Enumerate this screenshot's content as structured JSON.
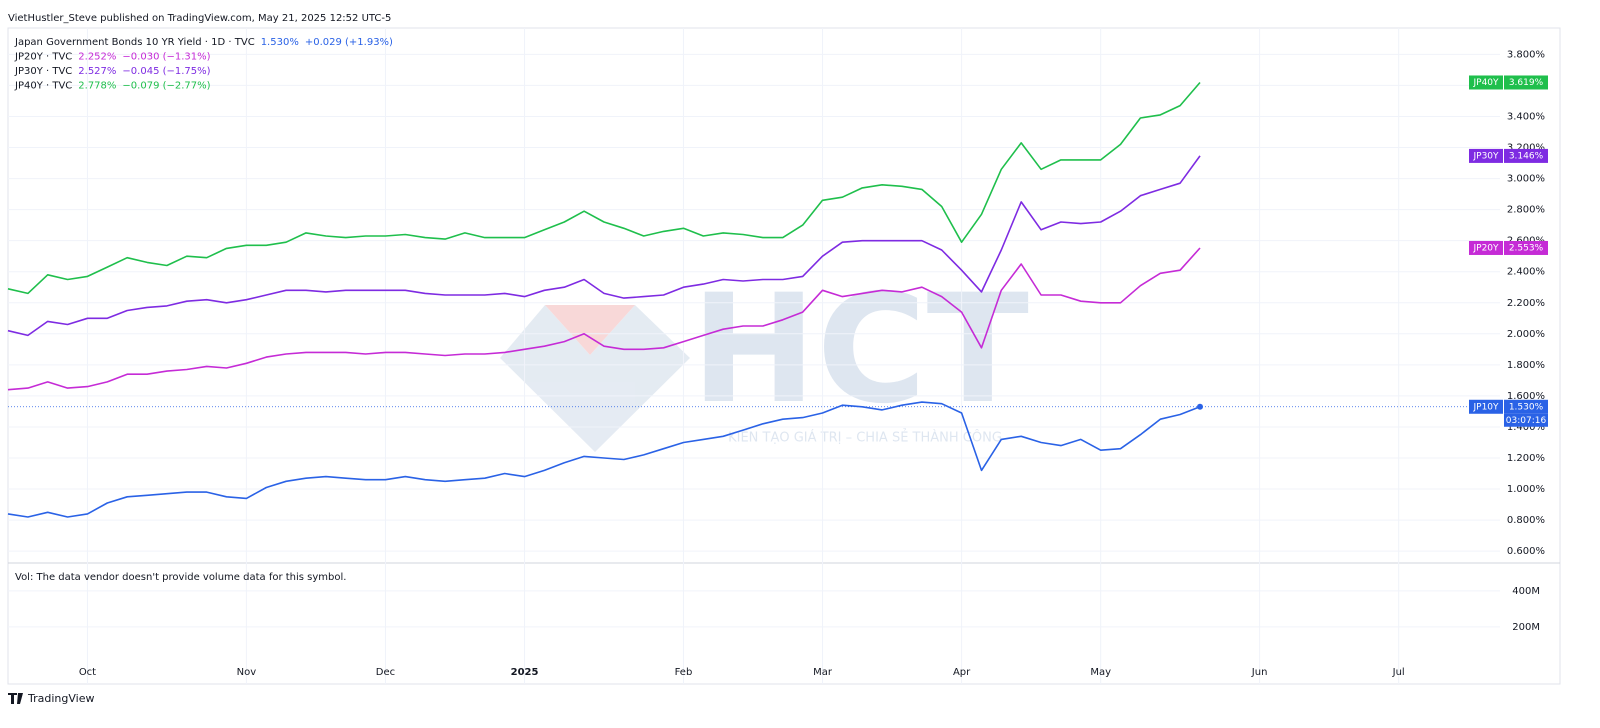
{
  "header": {
    "published": "VietHustler_Steve published on TradingView.com, May 21, 2025 12:52 UTC-5"
  },
  "watermark": {
    "logo": "HCT",
    "slogan": "KIẾN TẠO GIÁ TRỊ – CHIA SẺ THÀNH CÔNG"
  },
  "footer": {
    "brand": "TradingView"
  },
  "chart_data": {
    "type": "line",
    "grid": true,
    "categories": [
      null,
      null,
      null,
      null,
      "Oct",
      null,
      null,
      null,
      null,
      null,
      null,
      null,
      "Nov",
      null,
      null,
      null,
      null,
      null,
      null,
      "Dec",
      null,
      null,
      null,
      null,
      null,
      null,
      "2025",
      null,
      null,
      null,
      null,
      null,
      null,
      null,
      "Feb",
      null,
      null,
      null,
      null,
      null,
      null,
      "Mar",
      null,
      null,
      null,
      null,
      null,
      null,
      "Apr",
      null,
      null,
      null,
      null,
      null,
      null,
      "May",
      null,
      null,
      null,
      null,
      null,
      null,
      null,
      "Jun",
      null,
      null,
      null,
      null,
      null,
      null,
      "Jul",
      null,
      null,
      null,
      null,
      null
    ],
    "ylim": [
      0.53,
      3.97
    ],
    "yticks": [
      {
        "value": 0.6,
        "label": "0.600%"
      },
      {
        "value": 0.8,
        "label": "0.800%"
      },
      {
        "value": 1.0,
        "label": "1.000%"
      },
      {
        "value": 1.2,
        "label": "1.200%"
      },
      {
        "value": 1.4,
        "label": "1.400%"
      },
      {
        "value": 1.6,
        "label": "1.600%"
      },
      {
        "value": 1.8,
        "label": "1.800%"
      },
      {
        "value": 2.0,
        "label": "2.000%"
      },
      {
        "value": 2.2,
        "label": "2.200%"
      },
      {
        "value": 2.4,
        "label": "2.400%"
      },
      {
        "value": 2.6,
        "label": "2.600%"
      },
      {
        "value": 2.8,
        "label": "2.800%"
      },
      {
        "value": 3.0,
        "label": "3.000%"
      },
      {
        "value": 3.2,
        "label": "3.200%"
      },
      {
        "value": 3.4,
        "label": "3.400%"
      },
      {
        "value": 3.6,
        "label": "3.600%"
      },
      {
        "value": 3.8,
        "label": "3.800%"
      }
    ],
    "countdown": "03:07:16",
    "series": [
      {
        "name": "JP10Y",
        "legend": "Japan Government Bonds 10 YR Yield · 1D · TVC",
        "quote": "1.530%",
        "change": "+0.029 (+1.93%)",
        "last_label": "1.530%",
        "color": "#2a62e6",
        "values": [
          0.84,
          0.82,
          0.85,
          0.82,
          0.84,
          0.91,
          0.95,
          0.96,
          0.97,
          0.98,
          0.98,
          0.95,
          0.94,
          1.01,
          1.05,
          1.07,
          1.08,
          1.07,
          1.06,
          1.06,
          1.08,
          1.06,
          1.05,
          1.06,
          1.07,
          1.1,
          1.08,
          1.12,
          1.17,
          1.21,
          1.2,
          1.19,
          1.22,
          1.26,
          1.3,
          1.32,
          1.34,
          1.38,
          1.42,
          1.45,
          1.46,
          1.49,
          1.54,
          1.53,
          1.51,
          1.54,
          1.56,
          1.55,
          1.49,
          1.12,
          1.32,
          1.34,
          1.3,
          1.28,
          1.32,
          1.25,
          1.26,
          1.35,
          1.45,
          1.48,
          1.53,
          null,
          null,
          null,
          null,
          null,
          null,
          null,
          null,
          null,
          null,
          null,
          null,
          null,
          null,
          null
        ]
      },
      {
        "name": "JP20Y",
        "legend": "JP20Y · TVC",
        "quote": "2.252%",
        "change": "−0.030 (−1.31%)",
        "last_label": "2.553%",
        "color": "#c52bd6",
        "values": [
          1.64,
          1.65,
          1.69,
          1.65,
          1.66,
          1.69,
          1.74,
          1.74,
          1.76,
          1.77,
          1.79,
          1.78,
          1.81,
          1.85,
          1.87,
          1.88,
          1.88,
          1.88,
          1.87,
          1.88,
          1.88,
          1.87,
          1.86,
          1.87,
          1.87,
          1.88,
          1.9,
          1.92,
          1.95,
          2.0,
          1.92,
          1.9,
          1.9,
          1.91,
          1.95,
          1.99,
          2.03,
          2.05,
          2.05,
          2.09,
          2.14,
          2.28,
          2.24,
          2.26,
          2.28,
          2.27,
          2.3,
          2.24,
          2.14,
          1.91,
          2.28,
          2.45,
          2.25,
          2.25,
          2.21,
          2.2,
          2.2,
          2.31,
          2.39,
          2.41,
          2.553,
          null,
          null,
          null,
          null,
          null,
          null,
          null,
          null,
          null,
          null,
          null,
          null,
          null,
          null,
          null
        ]
      },
      {
        "name": "JP30Y",
        "legend": "JP30Y · TVC",
        "quote": "2.527%",
        "change": "−0.045 (−1.75%)",
        "last_label": "3.146%",
        "color": "#7e2be2",
        "values": [
          2.02,
          1.99,
          2.08,
          2.06,
          2.1,
          2.1,
          2.15,
          2.17,
          2.18,
          2.21,
          2.22,
          2.2,
          2.22,
          2.25,
          2.28,
          2.28,
          2.27,
          2.28,
          2.28,
          2.28,
          2.28,
          2.26,
          2.25,
          2.25,
          2.25,
          2.26,
          2.24,
          2.28,
          2.3,
          2.35,
          2.26,
          2.23,
          2.24,
          2.25,
          2.3,
          2.32,
          2.35,
          2.34,
          2.35,
          2.35,
          2.37,
          2.5,
          2.59,
          2.6,
          2.6,
          2.6,
          2.6,
          2.54,
          2.41,
          2.27,
          2.54,
          2.85,
          2.67,
          2.72,
          2.71,
          2.72,
          2.79,
          2.89,
          2.93,
          2.97,
          3.146,
          null,
          null,
          null,
          null,
          null,
          null,
          null,
          null,
          null,
          null,
          null,
          null,
          null,
          null,
          null
        ]
      },
      {
        "name": "JP40Y",
        "legend": "JP40Y · TVC",
        "quote": "2.778%",
        "change": "−0.079 (−2.77%)",
        "last_label": "3.619%",
        "color": "#1fbf4c",
        "values": [
          2.29,
          2.26,
          2.38,
          2.35,
          2.37,
          2.43,
          2.49,
          2.46,
          2.44,
          2.5,
          2.49,
          2.55,
          2.57,
          2.57,
          2.59,
          2.65,
          2.63,
          2.62,
          2.63,
          2.63,
          2.64,
          2.62,
          2.61,
          2.65,
          2.62,
          2.62,
          2.62,
          2.67,
          2.72,
          2.79,
          2.72,
          2.68,
          2.63,
          2.66,
          2.68,
          2.63,
          2.65,
          2.64,
          2.62,
          2.62,
          2.7,
          2.86,
          2.88,
          2.94,
          2.96,
          2.95,
          2.93,
          2.82,
          2.59,
          2.77,
          3.06,
          3.23,
          3.06,
          3.12,
          3.12,
          3.12,
          3.22,
          3.39,
          3.41,
          3.47,
          3.619,
          null,
          null,
          null,
          null,
          null,
          null,
          null,
          null,
          null,
          null,
          null,
          null,
          null,
          null,
          null
        ]
      }
    ],
    "volume": {
      "note": "Vol: The data vendor doesn't provide volume data for this symbol.",
      "ylim": [
        -117000000,
        555000000
      ],
      "yticks": [
        {
          "value": 400000000,
          "label": "400M"
        },
        {
          "value": 200000000,
          "label": "200M"
        }
      ]
    }
  }
}
